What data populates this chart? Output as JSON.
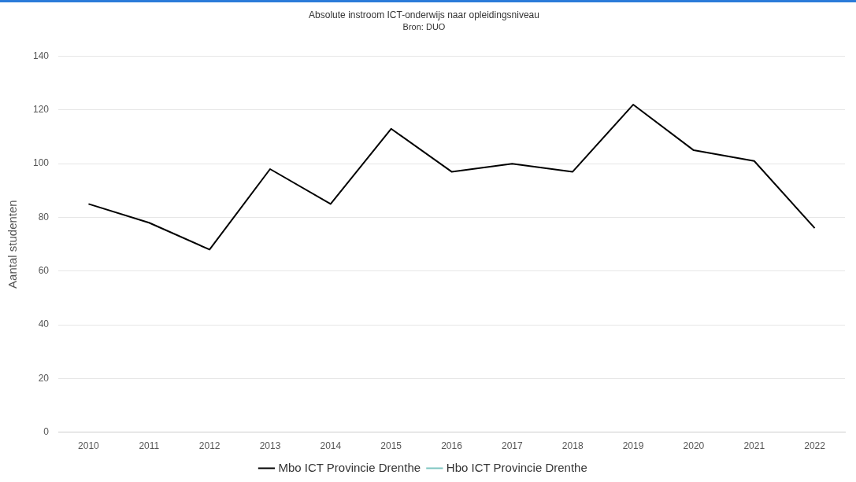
{
  "chart_data": {
    "type": "line",
    "title": "Absolute instroom ICT-onderwijs naar opleidingsniveau",
    "subtitle": "Bron: DUO",
    "ylabel": "Aantal studenten",
    "categories": [
      "2010",
      "2011",
      "2012",
      "2013",
      "2014",
      "2015",
      "2016",
      "2017",
      "2018",
      "2019",
      "2020",
      "2021",
      "2022"
    ],
    "series": [
      {
        "name": "Mbo ICT Provincie Drenthe",
        "color": "#000000",
        "values": [
          85,
          78,
          68,
          98,
          85,
          113,
          97,
          100,
          97,
          122,
          105,
          101,
          76
        ]
      },
      {
        "name": "Hbo ICT Provincie Drenthe",
        "color": "#7cc5c0",
        "values": [
          null,
          null,
          null,
          null,
          null,
          null,
          null,
          null,
          null,
          null,
          null,
          null,
          null
        ]
      }
    ],
    "ylim": [
      0,
      140
    ],
    "yticks": [
      0,
      20,
      40,
      60,
      80,
      100,
      120,
      140
    ],
    "grid": "y",
    "legend": "bottom",
    "marker": "none",
    "line_style": "solid"
  }
}
